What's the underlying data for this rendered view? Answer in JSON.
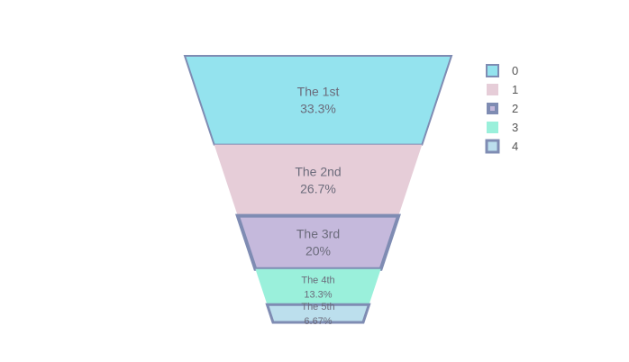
{
  "chart_data": {
    "type": "funnelarea",
    "labels": [
      "The 1st",
      "The 2nd",
      "The 3rd",
      "The 4th",
      "The 5th"
    ],
    "values": [
      5,
      4,
      3,
      2,
      1
    ],
    "percent_text": [
      "33.3%",
      "26.7%",
      "20%",
      "13.3%",
      "6.67%"
    ],
    "colors": [
      "#94e3ee",
      "#e6cdd8",
      "#c5b9dc",
      "#9af0db",
      "#bcdfed"
    ],
    "line_color": "#7f8cb3",
    "line_widths": [
      2,
      0,
      4,
      0,
      3
    ],
    "legend": {
      "placement": "right",
      "entries": [
        "0",
        "1",
        "2",
        "3",
        "4"
      ]
    }
  }
}
